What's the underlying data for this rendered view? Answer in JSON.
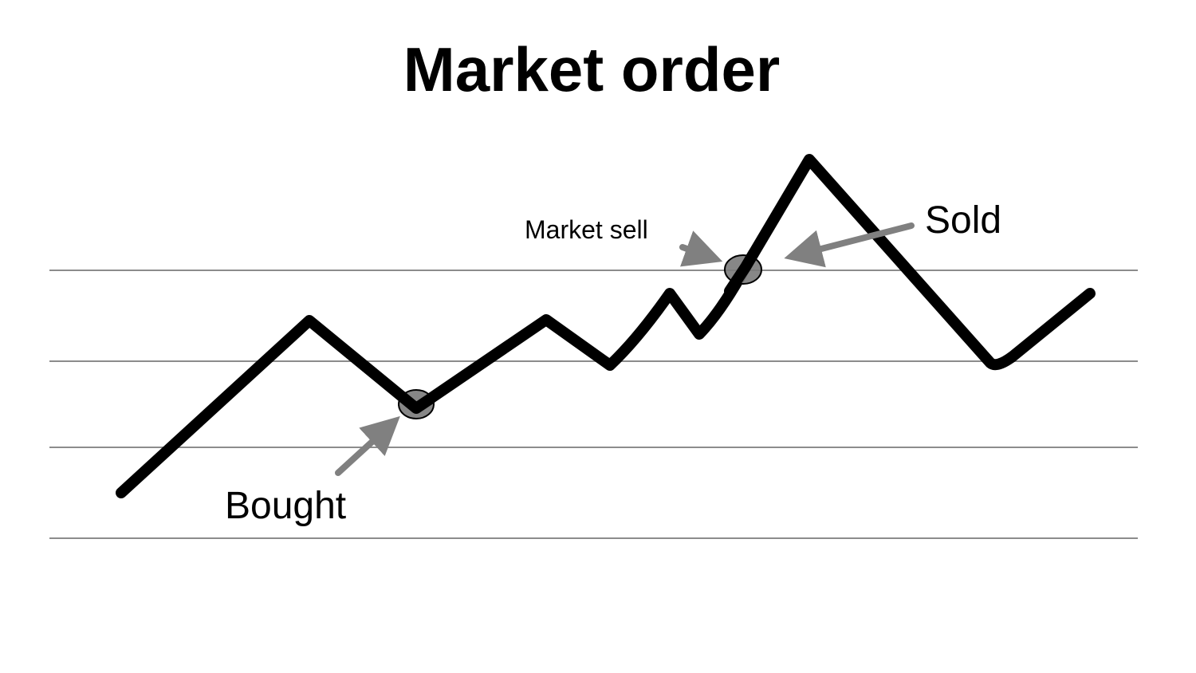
{
  "title": "Market order",
  "annotations": {
    "bought": "Bought",
    "market_sell": "Market sell",
    "sold": "Sold"
  },
  "colors": {
    "line": "#000000",
    "grid": "#8c8c8c",
    "arrow": "#808080",
    "marker": "#7a7a7a"
  }
}
